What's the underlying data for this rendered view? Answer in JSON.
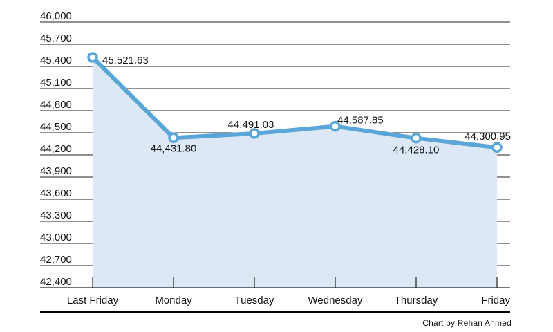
{
  "chart_data": {
    "type": "line",
    "categories": [
      "Last Friday",
      "Monday",
      "Tuesday",
      "Wednesday",
      "Thursday",
      "Friday"
    ],
    "series": [
      {
        "values": [
          45521.63,
          44431.8,
          44491.03,
          44587.85,
          44428.1,
          44300.95
        ],
        "value_labels": [
          "45,521.63",
          "44,431.80",
          "44,491.03",
          "44,587.85",
          "44,428.10",
          "44,300.95"
        ]
      }
    ],
    "ylim": [
      42400,
      46000
    ],
    "yticks": [
      42400,
      42700,
      43000,
      43300,
      43600,
      43900,
      44200,
      44500,
      44800,
      45100,
      45400,
      45700,
      46000
    ],
    "ytick_labels": [
      "42,400",
      "42,700",
      "43,000",
      "43,300",
      "43,600",
      "43,900",
      "44,200",
      "44,500",
      "44,800",
      "45,100",
      "45,400",
      "45,700",
      "46,000"
    ],
    "grid": true,
    "filled_area": true,
    "colors": {
      "line": "#5aa6d8",
      "area": "#dce8f5",
      "grid": "#222222",
      "marker_fill": "#ffffff"
    }
  },
  "credit": "Chart by Rehan Ahmed"
}
